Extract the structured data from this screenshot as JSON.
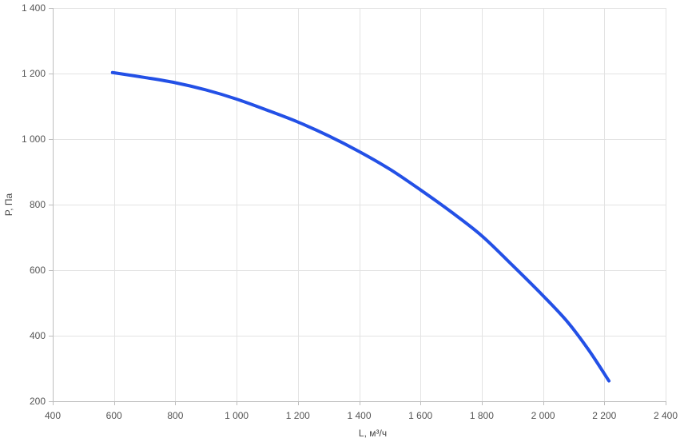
{
  "chart_data": {
    "type": "line",
    "xlabel": "L, м³/ч",
    "ylabel": "P, Па",
    "xlim": [
      400,
      2400
    ],
    "ylim": [
      200,
      1400
    ],
    "x_ticks": [
      400,
      600,
      800,
      1000,
      1200,
      1400,
      1600,
      1800,
      2000,
      2200,
      2400
    ],
    "x_tick_labels": [
      "400",
      "600",
      "800",
      "1 000",
      "1 200",
      "1 400",
      "1 600",
      "1 800",
      "2 000",
      "2 200",
      "2 400"
    ],
    "y_ticks": [
      200,
      400,
      600,
      800,
      1000,
      1200,
      1400
    ],
    "y_tick_labels": [
      "200",
      "400",
      "600",
      "800",
      "1 000",
      "1 200",
      "1 400"
    ],
    "grid": true,
    "legend": "none",
    "series": [
      {
        "color": "#2350e6",
        "x": [
          595,
          700,
          800,
          900,
          1000,
          1100,
          1200,
          1300,
          1400,
          1500,
          1600,
          1700,
          1800,
          1900,
          2000,
          2080,
          2150,
          2215
        ],
        "y": [
          1203,
          1188,
          1172,
          1150,
          1122,
          1088,
          1052,
          1010,
          962,
          908,
          845,
          778,
          705,
          615,
          522,
          442,
          355,
          262
        ]
      }
    ]
  }
}
